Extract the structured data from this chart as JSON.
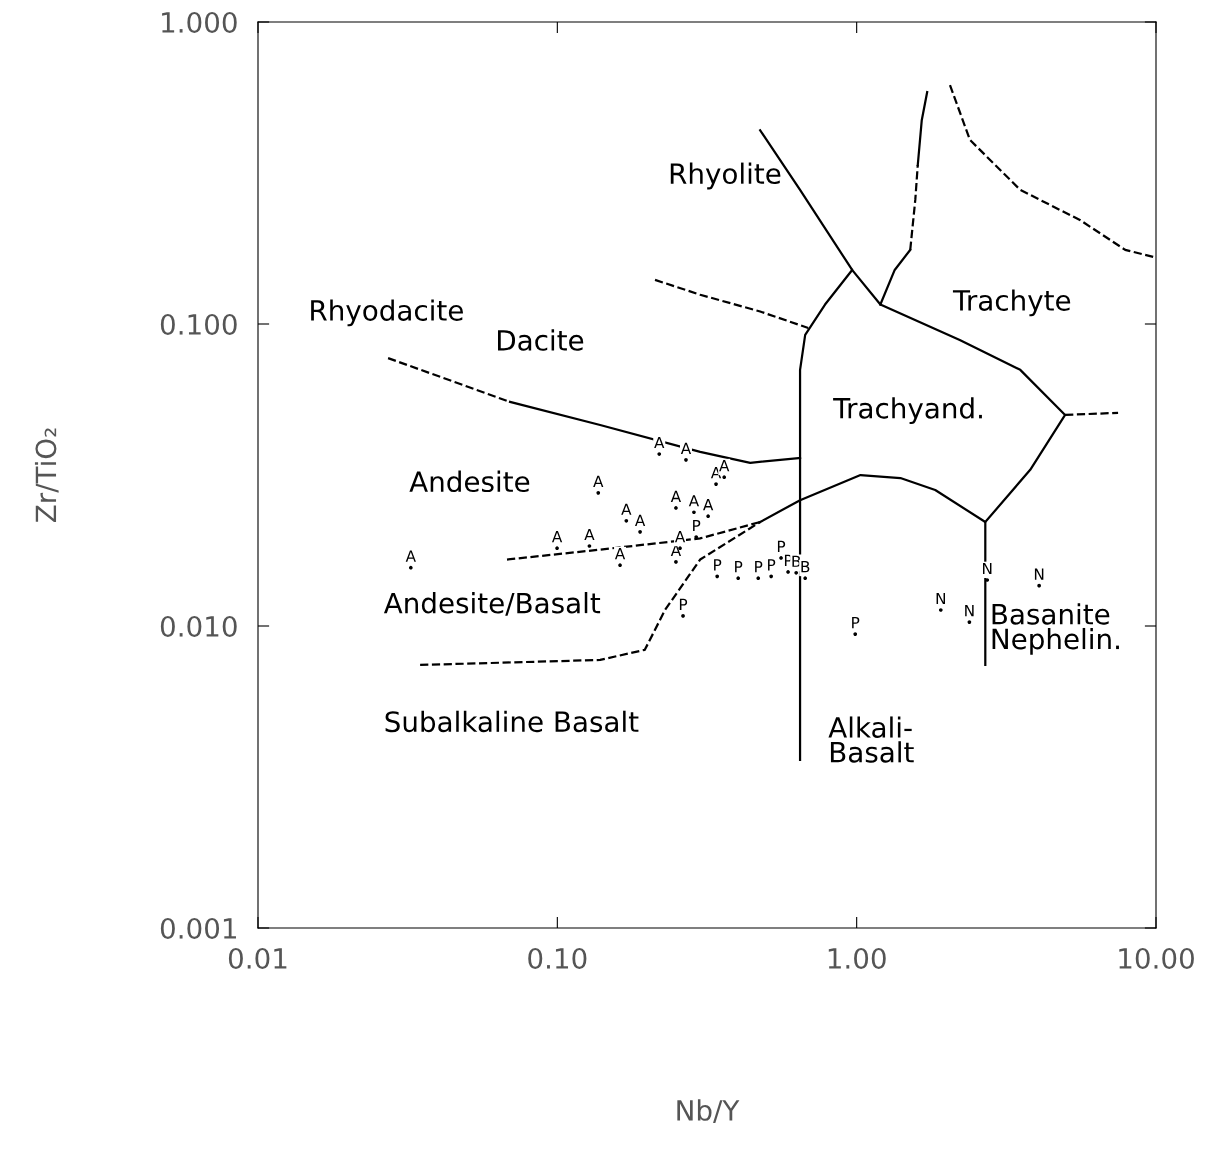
{
  "chart_data": {
    "type": "scatter",
    "xlabel": "Nb/Y",
    "ylabel": "Zr/TiO₂",
    "log": "xy",
    "xlim": [
      0.01,
      10
    ],
    "ylim": [
      0.001,
      1
    ],
    "xticks": [
      {
        "value": 0.01,
        "label": "0.01"
      },
      {
        "value": 0.1,
        "label": "0.10"
      },
      {
        "value": 1,
        "label": "1.00"
      },
      {
        "value": 10,
        "label": "10.00"
      }
    ],
    "yticks": [
      {
        "value": 0.001,
        "label": "0.001"
      },
      {
        "value": 0.01,
        "label": "0.010"
      },
      {
        "value": 0.1,
        "label": "0.100"
      },
      {
        "value": 1,
        "label": "1.000"
      }
    ],
    "grid": false,
    "legend": false,
    "series": [
      {
        "name": "A",
        "color": "#000000",
        "x": [
          0.0324,
          0.0998,
          0.128,
          0.137,
          0.162,
          0.17,
          0.189,
          0.219,
          0.269,
          0.249,
          0.286,
          0.319,
          0.339,
          0.361,
          0.249,
          0.257
        ],
        "values": [
          0.0156,
          0.0181,
          0.0184,
          0.0276,
          0.0159,
          0.0223,
          0.0205,
          0.0371,
          0.0355,
          0.0246,
          0.0238,
          0.0231,
          0.0295,
          0.0311,
          0.0163,
          0.0181
        ]
      },
      {
        "name": "P",
        "color": "#000000",
        "x": [
          0.263,
          0.291,
          0.342,
          0.402,
          0.469,
          0.518,
          0.559,
          0.59,
          0.989
        ],
        "values": [
          0.0108,
          0.0197,
          0.0146,
          0.0144,
          0.0144,
          0.0146,
          0.0168,
          0.0151,
          0.0094
        ]
      },
      {
        "name": "B",
        "color": "#000000",
        "x": [
          0.628,
          0.673
        ],
        "values": [
          0.015,
          0.0144
        ]
      },
      {
        "name": "N",
        "color": "#000000",
        "x": [
          2.73,
          4.07,
          1.91,
          2.38
        ],
        "values": [
          0.0142,
          0.0136,
          0.0113,
          0.0103
        ]
      },
      {
        "type": "line",
        "line_style": "dashed",
        "color": "#000000",
        "x": [
          0.0272,
          0.0695
        ],
        "values": [
          0.0771,
          0.0552
        ]
      },
      {
        "type": "line",
        "line_style": "solid",
        "color": "#000000",
        "x": [
          0.0695,
          0.139,
          0.3,
          0.441,
          0.647
        ],
        "values": [
          0.0552,
          0.0463,
          0.0377,
          0.0347,
          0.036
        ]
      },
      {
        "type": "line",
        "line_style": "solid",
        "color": "#000000",
        "x": [
          0.476,
          0.647,
          0.966,
          0.784,
          0.673,
          0.647,
          0.647
        ],
        "values": [
          0.438,
          0.278,
          0.151,
          0.116,
          0.092,
          0.0705,
          0.0036
        ]
      },
      {
        "type": "line",
        "line_style": "dashed",
        "color": "#000000",
        "x": [
          0.0679,
          0.139,
          0.3,
          0.476
        ],
        "values": [
          0.0166,
          0.0179,
          0.0195,
          0.0221
        ]
      },
      {
        "type": "line",
        "line_style": "solid",
        "color": "#000000",
        "x": [
          0.476,
          0.647,
          1.03,
          1.4,
          1.83,
          2.69,
          2.69
        ],
        "values": [
          0.0221,
          0.0261,
          0.0316,
          0.0309,
          0.0282,
          0.0221,
          0.00743
        ]
      },
      {
        "type": "line",
        "line_style": "solid",
        "color": "#000000",
        "x": [
          2.69,
          3.8,
          4.97,
          3.52,
          2.21,
          1.2,
          0.966
        ],
        "values": [
          0.0221,
          0.0329,
          0.05,
          0.0705,
          0.0885,
          0.116,
          0.151
        ]
      },
      {
        "type": "line",
        "line_style": "dashed",
        "color": "#000000",
        "x": [
          4.97,
          7.47
        ],
        "values": [
          0.05,
          0.0508
        ]
      },
      {
        "type": "line",
        "line_style": "solid",
        "color": "#000000",
        "x": [
          1.2,
          1.34,
          1.51
        ],
        "values": [
          0.116,
          0.151,
          0.176
        ]
      },
      {
        "type": "line",
        "line_style": "dashed",
        "color": "#000000",
        "x": [
          1.51,
          1.57,
          1.6
        ],
        "values": [
          0.176,
          0.258,
          0.336
        ]
      },
      {
        "type": "line",
        "line_style": "solid",
        "color": "#000000",
        "x": [
          1.6,
          1.65,
          1.72
        ],
        "values": [
          0.336,
          0.473,
          0.586
        ]
      },
      {
        "type": "line",
        "line_style": "dashed",
        "color": "#000000",
        "x": [
          2.05,
          2.39,
          3.52,
          5.57,
          7.89,
          10.0
        ],
        "values": [
          0.618,
          0.407,
          0.278,
          0.221,
          0.176,
          0.166
        ]
      },
      {
        "type": "line",
        "line_style": "dashed",
        "color": "#000000",
        "x": [
          0.212,
          0.3,
          0.476,
          0.689
        ],
        "values": [
          0.14,
          0.125,
          0.11,
          0.097
        ]
      },
      {
        "type": "line",
        "line_style": "dashed",
        "color": "#000000",
        "x": [
          0.0348,
          0.139,
          0.196,
          0.229,
          0.3,
          0.476
        ],
        "values": [
          0.00743,
          0.00772,
          0.00834,
          0.0113,
          0.0166,
          0.0221
        ]
      }
    ],
    "annotations": [
      "Rhyolite",
      "Rhyodacite",
      "Dacite",
      "Trachyte",
      "Trachyand.",
      "Andesite",
      "Andesite/Basalt",
      "Subalkaline Basalt",
      "Alkali-\nBasalt",
      "Basanite\nNephelin."
    ]
  }
}
